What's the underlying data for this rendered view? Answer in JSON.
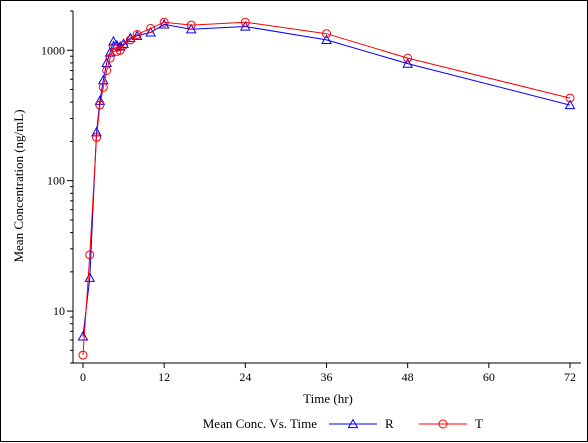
{
  "chart_data": {
    "type": "line",
    "title": "",
    "xlabel": "Time (hr)",
    "ylabel": "Mean Concentration (ng/mL)",
    "xlim": [
      0,
      72
    ],
    "ylim": [
      4,
      2000
    ],
    "yscale": "log",
    "x_ticks": [
      0,
      12,
      24,
      36,
      48,
      60,
      72
    ],
    "y_ticks": [
      10,
      100,
      1000
    ],
    "grid": false,
    "legend": {
      "title": "Mean Conc. Vs. Time",
      "placement": "bottom"
    },
    "series": [
      {
        "name": "R",
        "color": "#0000ff",
        "marker": "triangle",
        "points": [
          [
            0,
            6.4
          ],
          [
            1,
            18
          ],
          [
            2,
            235
          ],
          [
            2.5,
            410
          ],
          [
            3,
            590
          ],
          [
            3.5,
            800
          ],
          [
            4,
            960
          ],
          [
            4.5,
            1170
          ],
          [
            5,
            1090
          ],
          [
            5.5,
            1070
          ],
          [
            6,
            1120
          ],
          [
            7,
            1240
          ],
          [
            8,
            1290
          ],
          [
            10,
            1370
          ],
          [
            12,
            1580
          ],
          [
            16,
            1450
          ],
          [
            24,
            1520
          ],
          [
            36,
            1200
          ],
          [
            48,
            790
          ],
          [
            72,
            380
          ]
        ]
      },
      {
        "name": "T",
        "color": "#ff0000",
        "marker": "circle",
        "points": [
          [
            0,
            4.6
          ],
          [
            1,
            27
          ],
          [
            2,
            215
          ],
          [
            2.5,
            380
          ],
          [
            3,
            520
          ],
          [
            3.5,
            700
          ],
          [
            4,
            870
          ],
          [
            4.5,
            1050
          ],
          [
            5,
            980
          ],
          [
            5.5,
            1000
          ],
          [
            6,
            1090
          ],
          [
            7,
            1200
          ],
          [
            8,
            1320
          ],
          [
            10,
            1470
          ],
          [
            12,
            1640
          ],
          [
            16,
            1560
          ],
          [
            24,
            1640
          ],
          [
            36,
            1340
          ],
          [
            48,
            870
          ],
          [
            72,
            430
          ]
        ]
      }
    ]
  }
}
